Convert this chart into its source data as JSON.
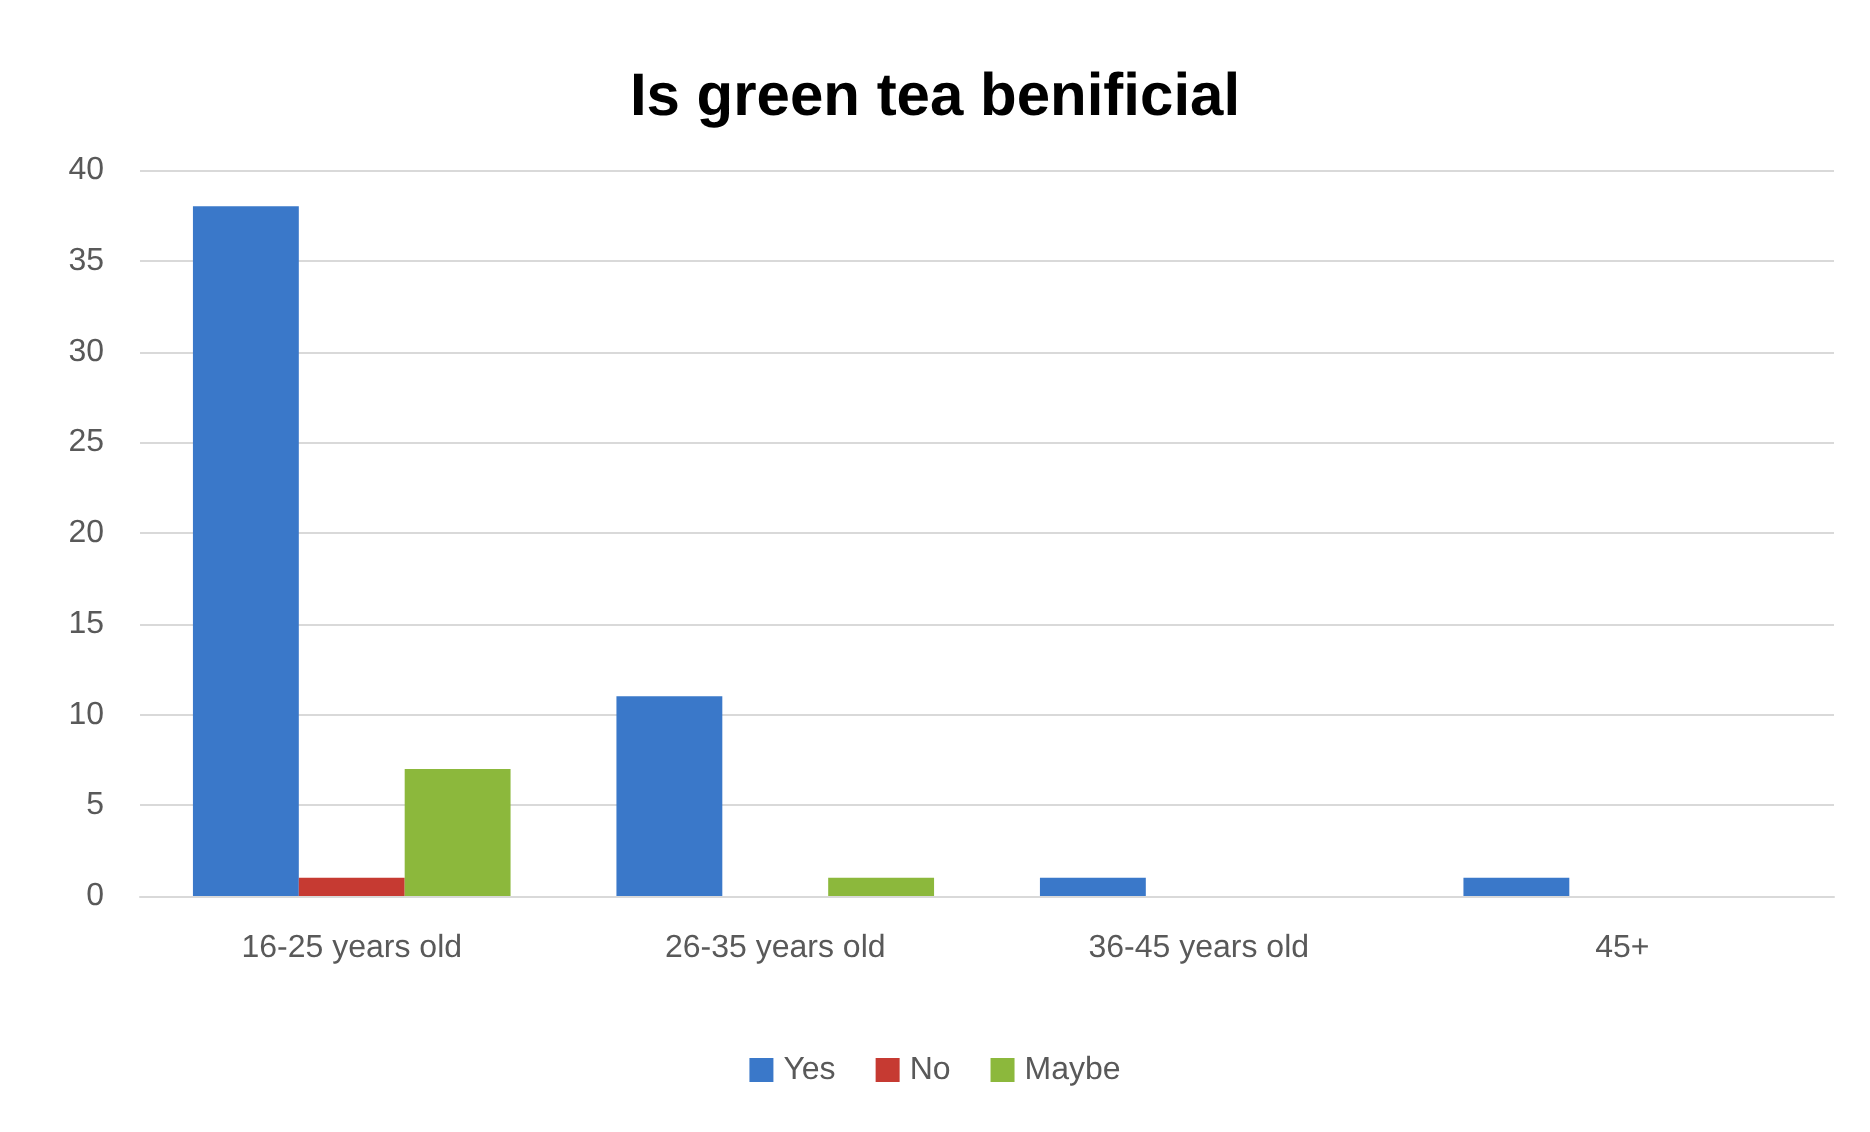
{
  "chart_data": {
    "type": "bar",
    "title": "Is green tea benificial",
    "categories": [
      "16-25 years old",
      "26-35 years old",
      "36-45 years old",
      "45+"
    ],
    "series": [
      {
        "name": "Yes",
        "color": "#3a78c9",
        "values": [
          38,
          11,
          1,
          1
        ]
      },
      {
        "name": "No",
        "color": "#c63a32",
        "values": [
          1,
          0,
          0,
          0
        ]
      },
      {
        "name": "Maybe",
        "color": "#8cb83c",
        "values": [
          7,
          1,
          0,
          0
        ]
      }
    ],
    "ylim": [
      0,
      40
    ],
    "yticks": [
      0,
      5,
      10,
      15,
      20,
      25,
      30,
      35,
      40
    ],
    "grid": "y",
    "legend": "bottom"
  }
}
